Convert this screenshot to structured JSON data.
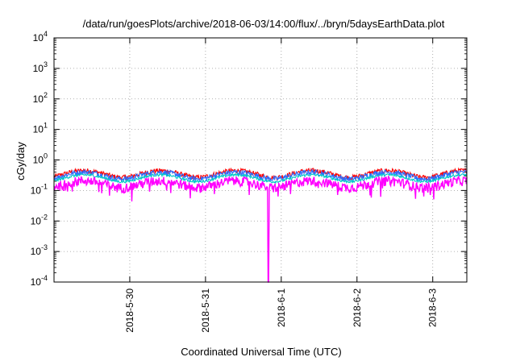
{
  "chart_data": {
    "type": "line",
    "title": "/data/run/goesPlots/archive/2018-06-03/14:00/flux/../bryn/5daysEarthData.plot",
    "xlabel": "Coordinated Universal Time (UTC)",
    "ylabel": "cGy/day",
    "yscale": "log",
    "ylim": [
      0.0001,
      10000
    ],
    "xlim": [
      0,
      5.45
    ],
    "grid": true,
    "x_ticks": [
      {
        "value": 1.0,
        "label": "2018-5-30"
      },
      {
        "value": 2.0,
        "label": "2018-5-31"
      },
      {
        "value": 3.0,
        "label": "2018-6-1"
      },
      {
        "value": 4.0,
        "label": "2018-6-2"
      },
      {
        "value": 5.0,
        "label": "2018-6-3"
      }
    ],
    "y_ticks": [
      {
        "value": 0.0001,
        "base": "10",
        "exp": "-4"
      },
      {
        "value": 0.001,
        "base": "10",
        "exp": "-3"
      },
      {
        "value": 0.01,
        "base": "10",
        "exp": "-2"
      },
      {
        "value": 0.1,
        "base": "10",
        "exp": "-1"
      },
      {
        "value": 1,
        "base": "10",
        "exp": "0"
      },
      {
        "value": 10,
        "base": "10",
        "exp": "1"
      },
      {
        "value": 100,
        "base": "10",
        "exp": "2"
      },
      {
        "value": 1000,
        "base": "10",
        "exp": "3"
      },
      {
        "value": 10000,
        "base": "10",
        "exp": "4"
      }
    ],
    "series": [
      {
        "color": "#ff0000",
        "base": 0.36,
        "noise": 0.18
      },
      {
        "color": "#2d6cff",
        "base": 0.32,
        "noise": 0.2
      },
      {
        "color": "#00c8c8",
        "base": 0.26,
        "noise": 0.1
      },
      {
        "color": "#ffffff",
        "base": 0.21,
        "noise": 0.06
      },
      {
        "color": "#ff00ff",
        "base": 0.17,
        "noise": 0.35
      }
    ],
    "dropout": {
      "x": 2.83,
      "value": 0.0001
    }
  }
}
